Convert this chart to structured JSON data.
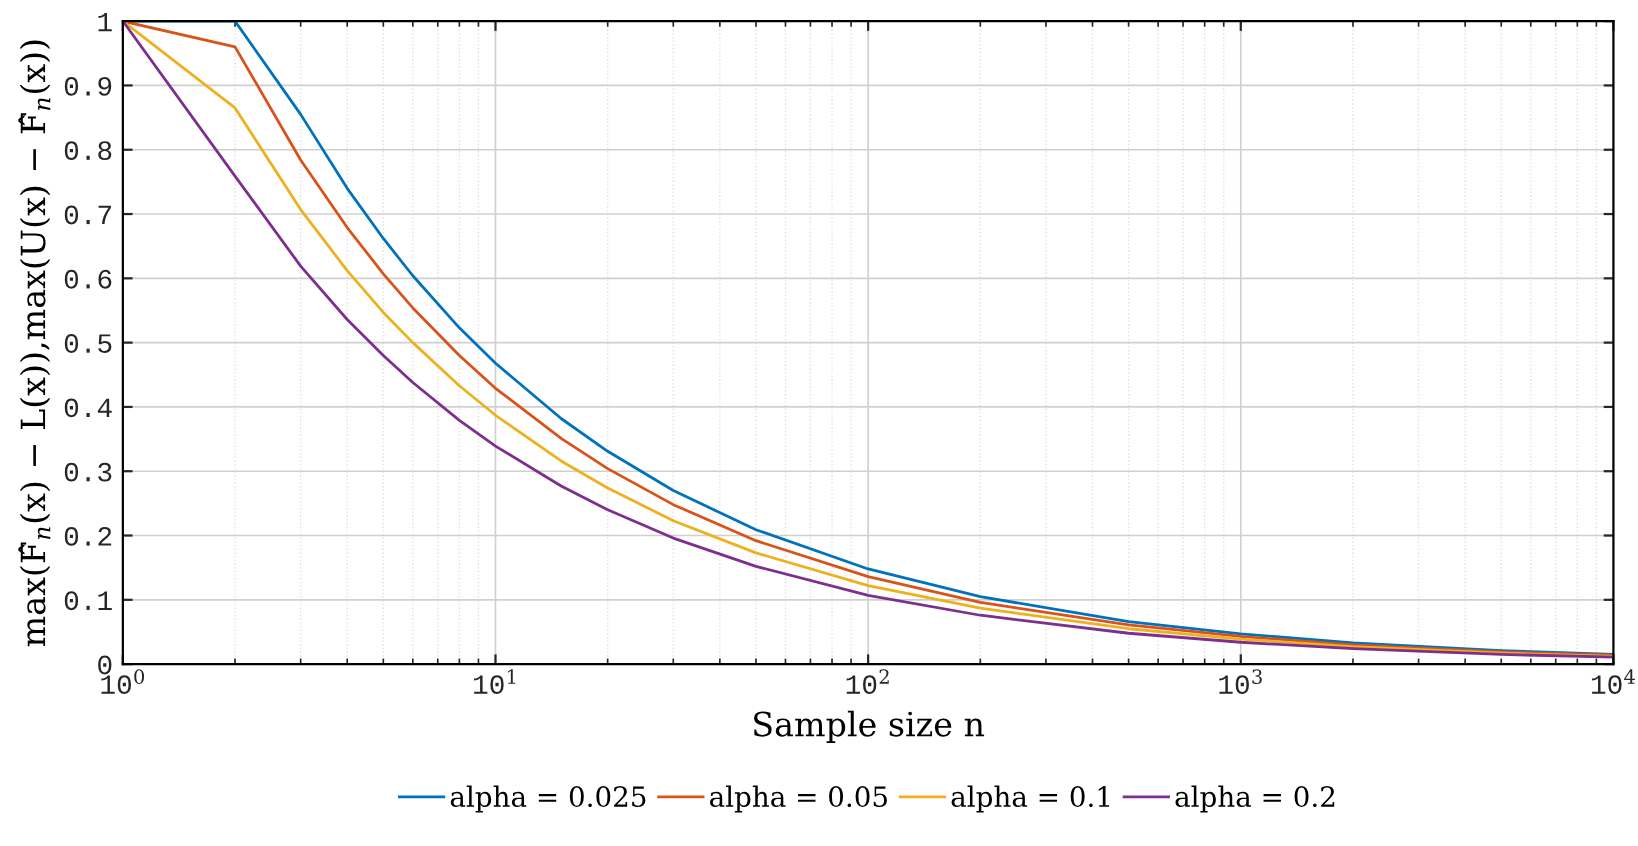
{
  "chart_data": {
    "type": "line",
    "xlabel": "Sample size n",
    "ylabel": "max(F̂$_{n}$(x) − L(x)),max(U(x) − F̂$_{n}$(x))",
    "x": [
      1,
      2,
      3,
      4,
      5,
      6,
      8,
      10,
      15,
      20,
      30,
      50,
      100,
      200,
      500,
      1000,
      2000,
      5000,
      10000
    ],
    "series": [
      {
        "name": "alpha = 0.025",
        "color": "#0072bd",
        "values": [
          1,
          1,
          0.855,
          0.74,
          0.662,
          0.604,
          0.523,
          0.468,
          0.382,
          0.331,
          0.27,
          0.209,
          0.148,
          0.105,
          0.066,
          0.047,
          0.033,
          0.021,
          0.015
        ]
      },
      {
        "name": "alpha = 0.05",
        "color": "#d95319",
        "values": [
          1,
          0.96,
          0.784,
          0.679,
          0.607,
          0.554,
          0.48,
          0.429,
          0.351,
          0.304,
          0.248,
          0.192,
          0.136,
          0.096,
          0.061,
          0.043,
          0.03,
          0.019,
          0.014
        ]
      },
      {
        "name": "alpha = 0.1",
        "color": "#edb120",
        "values": [
          1,
          0.865,
          0.707,
          0.612,
          0.547,
          0.5,
          0.433,
          0.387,
          0.316,
          0.274,
          0.223,
          0.173,
          0.122,
          0.087,
          0.055,
          0.039,
          0.027,
          0.017,
          0.012
        ]
      },
      {
        "name": "alpha = 0.2",
        "color": "#7e2f8e",
        "values": [
          1,
          0.759,
          0.619,
          0.536,
          0.48,
          0.438,
          0.379,
          0.339,
          0.277,
          0.24,
          0.196,
          0.152,
          0.107,
          0.076,
          0.048,
          0.034,
          0.024,
          0.015,
          0.011
        ]
      }
    ],
    "log": "x",
    "xlim": [
      1,
      10000
    ],
    "xticks": [
      {
        "value": 1,
        "label": "10$^{0}$"
      },
      {
        "value": 10,
        "label": "10$^{1}$"
      },
      {
        "value": 100,
        "label": "10$^{2}$"
      },
      {
        "value": 1000,
        "label": "10$^{3}$"
      },
      {
        "value": 10000,
        "label": "10$^{4}$"
      }
    ],
    "ylim": [
      0,
      1
    ],
    "yticks": [
      0,
      0.1,
      0.2,
      0.3,
      0.4,
      0.5,
      0.6,
      0.7,
      0.8,
      0.9,
      1
    ],
    "grid": true,
    "legend": "bottom",
    "marker": "none",
    "line_style": "solid"
  }
}
